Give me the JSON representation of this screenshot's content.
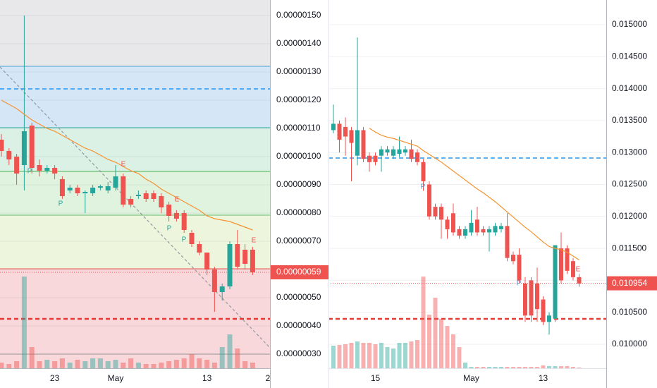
{
  "chart_data": [
    {
      "type": "candlestick",
      "background": "#e8e8ea",
      "up_color": "#26a69a",
      "down_color": "#ef5350",
      "ma_color": "#f5922f",
      "categories": [
        null,
        null,
        null,
        null,
        null,
        null,
        null,
        "23",
        null,
        null,
        null,
        null,
        null,
        null,
        null,
        "May",
        null,
        null,
        null,
        null,
        null,
        null,
        null,
        null,
        null,
        null,
        null,
        "13",
        null,
        null,
        null,
        null,
        null,
        null,
        null,
        "2"
      ],
      "open": [
        1.06e-06,
        1.02e-06,
        1e-06,
        9.7e-07,
        1.11e-06,
        9.7e-07,
        9.5e-07,
        9.6e-07,
        9.2e-07,
        8.8e-07,
        8.9e-07,
        8.7e-07,
        8.7e-07,
        8.9e-07,
        8.8e-07,
        8.9e-07,
        9.3e-07,
        8.5e-07,
        8.6e-07,
        8.7e-07,
        8.7e-07,
        8.6e-07,
        8.3e-07,
        8e-07,
        8e-07,
        7.3e-07,
        6.9e-07,
        6.6e-07,
        6e-07,
        5.2e-07,
        5.4e-07,
        6.9e-07,
        6.7e-07,
        6.7e-07,
        null,
        null
      ],
      "high": [
        1.08e-06,
        1.03e-06,
        1.01e-06,
        1.5e-06,
        1.12e-06,
        9.9e-07,
        9.7e-07,
        9.7e-07,
        9.3e-07,
        9e-07,
        9e-07,
        8.8e-07,
        9e-07,
        9e-07,
        9.1e-07,
        9.7e-07,
        9.4e-07,
        8.6e-07,
        8.8e-07,
        8.8e-07,
        8.8e-07,
        8.7e-07,
        8.4e-07,
        8.1e-07,
        8.1e-07,
        7.4e-07,
        7e-07,
        6.6e-07,
        6.1e-07,
        5.5e-07,
        7e-07,
        7.4e-07,
        6.9e-07,
        6.8e-07,
        null,
        null
      ],
      "low": [
        1e-06,
        9.7e-07,
        9e-07,
        8.8e-07,
        9.4e-07,
        9.3e-07,
        9.4e-07,
        9.2e-07,
        8.5e-07,
        8.7e-07,
        8.6e-07,
        8e-07,
        8.6e-07,
        8.8e-07,
        8.7e-07,
        8.8e-07,
        8.2e-07,
        8.2e-07,
        8.5e-07,
        8.4e-07,
        8.4e-07,
        8e-07,
        7.7e-07,
        7.7e-07,
        7.3e-07,
        6.8e-07,
        6.5e-07,
        5.8e-07,
        4.5e-07,
        4.9e-07,
        5.3e-07,
        6e-07,
        6e-07,
        5.8e-07,
        null,
        null
      ],
      "close": [
        1.02e-06,
        9.9e-07,
        9.4e-07,
        1.09e-06,
        9.6e-07,
        9.5e-07,
        9.6e-07,
        9.4e-07,
        8.6e-07,
        8.9e-07,
        8.7e-07,
        8.75e-07,
        8.9e-07,
        8.95e-07,
        8.95e-07,
        9.3e-07,
        8.3e-07,
        8.3e-07,
        8.65e-07,
        8.5e-07,
        8.5e-07,
        8.2e-07,
        7.9e-07,
        7.8e-07,
        7.4e-07,
        6.9e-07,
        6.6e-07,
        6e-07,
        5.2e-07,
        5.4e-07,
        6.9e-07,
        6.1e-07,
        6.2e-07,
        5.9e-07,
        null,
        null
      ],
      "volume": [
        8,
        6,
        10,
        130,
        30,
        10,
        12,
        10,
        14,
        8,
        12,
        10,
        14,
        14,
        10,
        12,
        8,
        14,
        8,
        6,
        6,
        8,
        10,
        12,
        14,
        20,
        14,
        12,
        8,
        30,
        48,
        28,
        10,
        8,
        null,
        null
      ],
      "ma": [
        1.2e-06,
        1.185e-06,
        1.17e-06,
        1.15e-06,
        1.13e-06,
        1.115e-06,
        1.1e-06,
        1.09e-06,
        1.075e-06,
        1.06e-06,
        1.045e-06,
        1.03e-06,
        1.02e-06,
        1.005e-06,
        9.9e-07,
        9.8e-07,
        9.65e-07,
        9.5e-07,
        9.4e-07,
        9.2e-07,
        9.05e-07,
        8.85e-07,
        8.7e-07,
        8.55e-07,
        8.4e-07,
        8.25e-07,
        8.1e-07,
        7.9e-07,
        7.8e-07,
        7.75e-07,
        7.7e-07,
        7.6e-07,
        7.5e-07,
        7.4e-07,
        null,
        null
      ],
      "ylim": [
        2.5e-07,
        1.555e-06
      ],
      "yticks": [
        {
          "value": 1.5e-06,
          "label": "0.00000150"
        },
        {
          "value": 1.4e-06,
          "label": "0.00000140"
        },
        {
          "value": 1.3e-06,
          "label": "0.00000130"
        },
        {
          "value": 1.2e-06,
          "label": "0.00000120"
        },
        {
          "value": 1.1e-06,
          "label": "0.00000110"
        },
        {
          "value": 1e-06,
          "label": "0.00000100"
        },
        {
          "value": 9e-07,
          "label": "0.00000090"
        },
        {
          "value": 8e-07,
          "label": "0.00000080"
        },
        {
          "value": 7e-07,
          "label": "0.00000070"
        },
        {
          "value": 6e-07,
          "label": "0.00000060"
        },
        {
          "value": 5e-07,
          "label": "0.00000050"
        },
        {
          "value": 4e-07,
          "label": "0.00000040"
        },
        {
          "value": 3e-07,
          "label": "0.00000030"
        }
      ],
      "grid": true,
      "fib": [
        {
          "value": 1.32e-06,
          "color": "#4a9fd0",
          "fill": "#d5e7f6"
        },
        {
          "value": 1.1025e-06,
          "color": "#2aa39a",
          "fill": "#dbf1e6"
        },
        {
          "value": 9.475e-07,
          "color": "#4caf50",
          "fill": "#e0f3df"
        },
        {
          "value": 7.925e-07,
          "color": "#66bb6a",
          "fill": "#edf6dd"
        },
        {
          "value": 6.025e-07,
          "color": "#ef5350",
          "fill": "#f8d8da"
        },
        {
          "value": 3e-07,
          "color": "#9e9e9e",
          "fill": "#f8d8da"
        }
      ],
      "levels": [
        {
          "value": 1.24e-06,
          "color": "#2196f3",
          "width": 1.5
        },
        {
          "value": 4.25e-07,
          "color": "#e53935",
          "width": 2.5
        }
      ],
      "last_price": {
        "value": 5.9e-07,
        "label": "0.00000059",
        "color": "#ef5350"
      },
      "annotations": [
        {
          "text": "P",
          "color": "#26a69a"
        },
        {
          "text": "P",
          "color": "#26a69a"
        },
        {
          "text": "E",
          "color": "#ef5350"
        },
        {
          "text": "E",
          "color": "#ef5350"
        },
        {
          "text": "P",
          "color": "#26a69a"
        },
        {
          "text": "P",
          "color": "#26a69a"
        },
        {
          "text": "E",
          "color": "#ef5350"
        }
      ]
    },
    {
      "type": "candlestick",
      "background": "#ffffff",
      "up_color": "#26a69a",
      "down_color": "#ef5350",
      "ma_color": "#f5922f",
      "categories": [
        null,
        null,
        null,
        null,
        null,
        null,
        null,
        "15",
        null,
        null,
        null,
        null,
        null,
        null,
        null,
        null,
        null,
        null,
        null,
        null,
        null,
        null,
        null,
        "May",
        null,
        null,
        null,
        null,
        null,
        null,
        null,
        null,
        null,
        null,
        null,
        "13",
        null,
        null,
        null,
        null,
        null,
        null
      ],
      "open": [
        0.01335,
        0.01345,
        0.0134,
        0.01335,
        0.01295,
        0.01335,
        0.01295,
        0.01295,
        0.01295,
        0.013,
        0.01295,
        0.01298,
        0.013,
        0.01305,
        0.013,
        0.01285,
        0.0125,
        0.01215,
        0.01215,
        0.01195,
        0.01205,
        0.0118,
        0.0117,
        0.01175,
        0.01195,
        0.0118,
        0.01175,
        0.01175,
        0.0118,
        0.01185,
        0.0114,
        0.0114,
        0.01095,
        0.011,
        0.01095,
        0.0107,
        0.01035,
        0.0104,
        0.0115,
        0.0115,
        0.0113,
        0.01105
      ],
      "high": [
        0.01375,
        0.0135,
        0.01355,
        0.0134,
        0.0148,
        0.0134,
        0.013,
        0.013,
        0.0131,
        0.0131,
        0.0131,
        0.01325,
        0.0131,
        0.0132,
        0.01305,
        0.0129,
        0.01255,
        0.0122,
        0.0122,
        0.012,
        0.0122,
        0.01185,
        0.01185,
        0.0121,
        0.01215,
        0.01185,
        0.01185,
        0.0119,
        0.0119,
        0.01205,
        0.01145,
        0.0115,
        0.01105,
        0.01105,
        0.0112,
        0.01075,
        0.0105,
        0.01155,
        0.01175,
        0.01155,
        0.01135,
        0.0111
      ],
      "low": [
        0.0133,
        0.013,
        0.01295,
        0.01255,
        0.0128,
        0.01285,
        0.0127,
        0.0128,
        0.0127,
        0.01295,
        0.0129,
        0.01293,
        0.01295,
        0.01285,
        0.0128,
        0.0124,
        0.01195,
        0.01195,
        0.01165,
        0.01165,
        0.0117,
        0.01165,
        0.01165,
        0.0117,
        0.0117,
        0.0117,
        0.01145,
        0.0117,
        0.01175,
        0.0113,
        0.01125,
        0.01095,
        0.01035,
        0.01035,
        0.01035,
        0.0103,
        0.01015,
        0.01035,
        0.01095,
        0.0111,
        0.011,
        0.0109
      ],
      "close": [
        0.01345,
        0.0132,
        0.01325,
        0.01315,
        0.01335,
        0.0129,
        0.01285,
        0.01285,
        0.01305,
        0.01305,
        0.01305,
        0.01305,
        0.01305,
        0.0129,
        0.01285,
        0.01255,
        0.012,
        0.012,
        0.01195,
        0.0118,
        0.01175,
        0.0117,
        0.0118,
        0.0119,
        0.01175,
        0.01175,
        0.0118,
        0.01185,
        0.01185,
        0.01135,
        0.0113,
        0.011,
        0.01045,
        0.01045,
        0.01055,
        0.01035,
        0.01045,
        0.01155,
        0.011,
        0.01115,
        0.01105,
        0.01095
      ],
      "volume": [
        32,
        33,
        34,
        36,
        38,
        36,
        36,
        34,
        36,
        30,
        28,
        36,
        36,
        38,
        40,
        130,
        76,
        100,
        70,
        60,
        48,
        30,
        8,
        2,
        2,
        2,
        2,
        2,
        2,
        2,
        2,
        2,
        2,
        2,
        2,
        4,
        3,
        3,
        3,
        3,
        2,
        1
      ],
      "ma": [
        null,
        null,
        null,
        null,
        null,
        null,
        0.01338,
        0.01332,
        0.01327,
        0.01324,
        0.01322,
        0.01319,
        0.01316,
        0.01313,
        0.0131,
        0.01303,
        0.01297,
        0.01291,
        0.01285,
        0.01278,
        0.01271,
        0.01264,
        0.01257,
        0.0125,
        0.01243,
        0.01237,
        0.0123,
        0.01223,
        0.01215,
        0.01207,
        0.01199,
        0.01191,
        0.01183,
        0.01176,
        0.01168,
        0.0116,
        0.01153,
        0.0115,
        0.01148,
        0.01144,
        0.01138,
        0.01132
      ],
      "ylim": [
        0.009625,
        0.015386
      ],
      "yticks": [
        {
          "value": 0.015,
          "label": "0.015000"
        },
        {
          "value": 0.0145,
          "label": "0.014500"
        },
        {
          "value": 0.014,
          "label": "0.014000"
        },
        {
          "value": 0.0135,
          "label": "0.013500"
        },
        {
          "value": 0.013,
          "label": "0.013000"
        },
        {
          "value": 0.0125,
          "label": "0.012500"
        },
        {
          "value": 0.012,
          "label": "0.012000"
        },
        {
          "value": 0.0115,
          "label": "0.011500"
        },
        {
          "value": 0.011,
          "label": "0.011000"
        },
        {
          "value": 0.0105,
          "label": "0.010500"
        },
        {
          "value": 0.01,
          "label": "0.010000"
        }
      ],
      "grid": true,
      "levels": [
        {
          "value": 0.012914,
          "color": "#2196f3",
          "width": 1.5
        },
        {
          "value": 0.010397,
          "color": "#e53935",
          "width": 2.5
        }
      ],
      "last_price": {
        "value": 0.010954,
        "label": "0.010954",
        "color": "#ef5350"
      },
      "annotations": [
        {
          "text": "P",
          "color": "#4a90d9"
        },
        {
          "text": "P",
          "color": "#4a90d9"
        },
        {
          "text": "E",
          "color": "#ef5350"
        }
      ]
    }
  ]
}
